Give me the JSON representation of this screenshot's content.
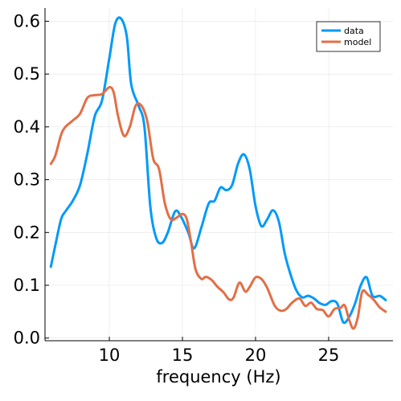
{
  "chart_data": {
    "type": "line",
    "title": "",
    "xlabel": "frequency (Hz)",
    "ylabel": "",
    "xlim": [
      5.6,
      29.4
    ],
    "ylim": [
      -0.005,
      0.625
    ],
    "grid": true,
    "legend_position": "top-right",
    "x_ticks": [
      {
        "value": 10,
        "label": "10"
      },
      {
        "value": 15,
        "label": "15"
      },
      {
        "value": 20,
        "label": "20"
      },
      {
        "value": 25,
        "label": "25"
      }
    ],
    "y_ticks": [
      {
        "value": 0.0,
        "label": "0.0"
      },
      {
        "value": 0.1,
        "label": "0.1"
      },
      {
        "value": 0.2,
        "label": "0.2"
      },
      {
        "value": 0.3,
        "label": "0.3"
      },
      {
        "value": 0.4,
        "label": "0.4"
      },
      {
        "value": 0.5,
        "label": "0.5"
      },
      {
        "value": 0.6,
        "label": "0.6"
      }
    ],
    "series": [
      {
        "name": "data",
        "color": "#009af9",
        "points": [
          [
            6.0,
            0.135
          ],
          [
            6.3,
            0.175
          ],
          [
            6.7,
            0.225
          ],
          [
            7.0,
            0.24
          ],
          [
            7.5,
            0.26
          ],
          [
            8.0,
            0.29
          ],
          [
            8.5,
            0.35
          ],
          [
            9.0,
            0.42
          ],
          [
            9.5,
            0.45
          ],
          [
            10.0,
            0.53
          ],
          [
            10.4,
            0.595
          ],
          [
            10.8,
            0.605
          ],
          [
            11.2,
            0.57
          ],
          [
            11.5,
            0.48
          ],
          [
            12.0,
            0.44
          ],
          [
            12.4,
            0.4
          ],
          [
            12.8,
            0.25
          ],
          [
            13.2,
            0.19
          ],
          [
            13.6,
            0.18
          ],
          [
            14.0,
            0.2
          ],
          [
            14.5,
            0.24
          ],
          [
            14.9,
            0.23
          ],
          [
            15.4,
            0.2
          ],
          [
            15.8,
            0.17
          ],
          [
            16.3,
            0.21
          ],
          [
            16.8,
            0.255
          ],
          [
            17.2,
            0.26
          ],
          [
            17.6,
            0.285
          ],
          [
            18.0,
            0.28
          ],
          [
            18.4,
            0.29
          ],
          [
            18.8,
            0.33
          ],
          [
            19.2,
            0.348
          ],
          [
            19.6,
            0.32
          ],
          [
            20.0,
            0.25
          ],
          [
            20.4,
            0.212
          ],
          [
            20.8,
            0.225
          ],
          [
            21.2,
            0.242
          ],
          [
            21.6,
            0.22
          ],
          [
            22.0,
            0.16
          ],
          [
            22.4,
            0.12
          ],
          [
            22.8,
            0.09
          ],
          [
            23.2,
            0.077
          ],
          [
            23.6,
            0.08
          ],
          [
            24.0,
            0.075
          ],
          [
            24.4,
            0.066
          ],
          [
            24.8,
            0.063
          ],
          [
            25.2,
            0.07
          ],
          [
            25.6,
            0.065
          ],
          [
            26.0,
            0.03
          ],
          [
            26.4,
            0.04
          ],
          [
            26.8,
            0.065
          ],
          [
            27.2,
            0.1
          ],
          [
            27.6,
            0.115
          ],
          [
            28.0,
            0.08
          ],
          [
            28.5,
            0.08
          ],
          [
            28.9,
            0.072
          ]
        ]
      },
      {
        "name": "model",
        "color": "#e26f46",
        "points": [
          [
            6.0,
            0.33
          ],
          [
            6.3,
            0.345
          ],
          [
            6.7,
            0.385
          ],
          [
            7.0,
            0.4
          ],
          [
            7.5,
            0.412
          ],
          [
            8.0,
            0.425
          ],
          [
            8.5,
            0.455
          ],
          [
            9.0,
            0.46
          ],
          [
            9.5,
            0.462
          ],
          [
            10.0,
            0.475
          ],
          [
            10.3,
            0.465
          ],
          [
            10.6,
            0.42
          ],
          [
            11.0,
            0.383
          ],
          [
            11.4,
            0.4
          ],
          [
            11.8,
            0.44
          ],
          [
            12.2,
            0.44
          ],
          [
            12.6,
            0.41
          ],
          [
            13.0,
            0.34
          ],
          [
            13.4,
            0.32
          ],
          [
            13.8,
            0.255
          ],
          [
            14.2,
            0.225
          ],
          [
            14.6,
            0.228
          ],
          [
            15.0,
            0.235
          ],
          [
            15.3,
            0.225
          ],
          [
            15.6,
            0.18
          ],
          [
            15.9,
            0.13
          ],
          [
            16.3,
            0.112
          ],
          [
            16.6,
            0.116
          ],
          [
            17.0,
            0.11
          ],
          [
            17.4,
            0.097
          ],
          [
            17.8,
            0.087
          ],
          [
            18.2,
            0.073
          ],
          [
            18.5,
            0.077
          ],
          [
            18.9,
            0.105
          ],
          [
            19.3,
            0.088
          ],
          [
            19.6,
            0.097
          ],
          [
            20.0,
            0.115
          ],
          [
            20.4,
            0.112
          ],
          [
            20.8,
            0.095
          ],
          [
            21.3,
            0.062
          ],
          [
            21.7,
            0.052
          ],
          [
            22.1,
            0.055
          ],
          [
            22.5,
            0.067
          ],
          [
            23.0,
            0.075
          ],
          [
            23.4,
            0.061
          ],
          [
            23.8,
            0.067
          ],
          [
            24.2,
            0.055
          ],
          [
            24.6,
            0.053
          ],
          [
            25.0,
            0.041
          ],
          [
            25.4,
            0.055
          ],
          [
            25.8,
            0.057
          ],
          [
            26.1,
            0.062
          ],
          [
            26.4,
            0.035
          ],
          [
            26.7,
            0.018
          ],
          [
            27.0,
            0.04
          ],
          [
            27.3,
            0.088
          ],
          [
            27.7,
            0.082
          ],
          [
            28.1,
            0.072
          ],
          [
            28.5,
            0.058
          ],
          [
            28.9,
            0.05
          ]
        ]
      }
    ]
  }
}
